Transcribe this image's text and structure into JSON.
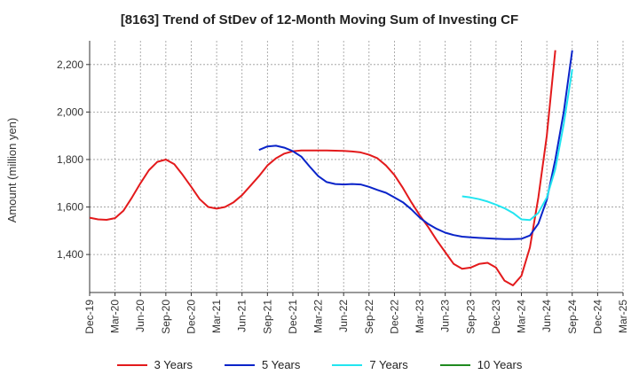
{
  "chart_data": {
    "type": "line",
    "title": "[8163]  Trend of StDev of 12-Month Moving Sum of Investing CF",
    "xlabel": "",
    "ylabel": "Amount (million yen)",
    "ylim": [
      1240,
      2300
    ],
    "yticks": [
      1400,
      1600,
      1800,
      2000,
      2200
    ],
    "ytick_labels": [
      "1,400",
      "1,600",
      "1,800",
      "2,000",
      "2,200"
    ],
    "x_tick_labels": [
      "Dec-19",
      "Mar-20",
      "Jun-20",
      "Sep-20",
      "Dec-20",
      "Mar-21",
      "Jun-21",
      "Sep-21",
      "Dec-21",
      "Mar-22",
      "Jun-22",
      "Sep-22",
      "Dec-22",
      "Mar-23",
      "Jun-23",
      "Sep-23",
      "Dec-23",
      "Mar-24",
      "Jun-24",
      "Sep-24",
      "Dec-24",
      "Mar-25"
    ],
    "x_start": "2019-12",
    "grid": true,
    "legend_position": "bottom",
    "series": [
      {
        "name": "3 Years",
        "color": "#e31a1c",
        "start": "2019-12",
        "values": [
          1555,
          1548,
          1546,
          1553,
          1585,
          1640,
          1700,
          1755,
          1790,
          1800,
          1780,
          1735,
          1685,
          1633,
          1600,
          1593,
          1600,
          1620,
          1650,
          1690,
          1730,
          1775,
          1805,
          1825,
          1835,
          1838,
          1838,
          1838,
          1838,
          1837,
          1836,
          1834,
          1830,
          1820,
          1805,
          1775,
          1735,
          1680,
          1620,
          1565,
          1515,
          1460,
          1410,
          1360,
          1340,
          1345,
          1360,
          1365,
          1345,
          1290,
          1270,
          1310,
          1430,
          1640,
          1900,
          2260
        ]
      },
      {
        "name": "5 Years",
        "color": "#0a24c9",
        "start": "2021-08",
        "values": [
          1840,
          1855,
          1858,
          1850,
          1835,
          1812,
          1770,
          1730,
          1705,
          1697,
          1695,
          1697,
          1695,
          1685,
          1672,
          1660,
          1640,
          1620,
          1590,
          1555,
          1528,
          1508,
          1492,
          1482,
          1475,
          1472,
          1470,
          1468,
          1466,
          1465,
          1465,
          1466,
          1480,
          1530,
          1630,
          1800,
          2000,
          2260
        ]
      },
      {
        "name": "7 Years",
        "color": "#22e5f0",
        "start": "2023-08",
        "values": [
          1645,
          1640,
          1633,
          1623,
          1610,
          1595,
          1575,
          1548,
          1545,
          1575,
          1640,
          1760,
          1950,
          2180
        ]
      },
      {
        "name": "10 Years",
        "color": "#1f8a1f",
        "start": "2024-12",
        "values": []
      }
    ]
  }
}
